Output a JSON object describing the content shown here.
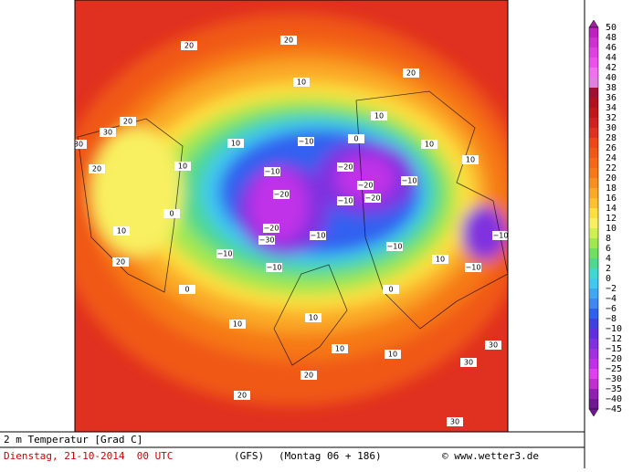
{
  "map": {
    "contour_labels": [
      "20",
      "20",
      "20",
      "10",
      "10",
      "20",
      "30",
      "30",
      "20",
      "10",
      "10",
      "−10",
      "0",
      "10",
      "−20",
      "−10",
      "−20",
      "−20",
      "−10",
      "−10",
      "−20",
      "−20",
      "−30",
      "−10",
      "−10",
      "−10",
      "−10",
      "−10",
      "−10",
      "10",
      "0",
      "10",
      "20",
      "10",
      "10",
      "10",
      "10",
      "30",
      "30",
      "20",
      "20",
      "30",
      "0",
      "0",
      "10"
    ]
  },
  "legend": {
    "labels": [
      "50",
      "48",
      "46",
      "44",
      "42",
      "40",
      "38",
      "36",
      "34",
      "32",
      "30",
      "28",
      "26",
      "24",
      "22",
      "20",
      "18",
      "16",
      "14",
      "12",
      "10",
      "8",
      "6",
      "4",
      "2",
      "0",
      "−2",
      "−4",
      "−6",
      "−8",
      "−10",
      "−12",
      "−15",
      "−20",
      "−25",
      "−30",
      "−35",
      "−40",
      "−45"
    ],
    "colors": [
      "#a020a0",
      "#c020c0",
      "#d030d0",
      "#e040e0",
      "#ee50ee",
      "#f070f0",
      "#e080e0",
      "#a01030",
      "#b01020",
      "#c01818",
      "#d02020",
      "#e03020",
      "#ee4818",
      "#f05818",
      "#f46818",
      "#f67818",
      "#f89020",
      "#faa828",
      "#fcc030",
      "#fde040",
      "#f8f060",
      "#d0f050",
      "#a0e850",
      "#70e060",
      "#50d890",
      "#40d8d0",
      "#40c8f0",
      "#40a8f0",
      "#4088f0",
      "#3060f0",
      "#4040e0",
      "#6030e0",
      "#8030e0",
      "#a030e0",
      "#c030e8",
      "#e040f0",
      "#c030d0",
      "#9020b0",
      "#701890"
    ]
  },
  "footer": {
    "variable": "2 m Temperatur [Grad C]",
    "date": "Dienstag, 21-10-2014  00 UTC",
    "model": "(GFS)",
    "run": "(Montag 06 + 186)",
    "credit": "© www.wetter3.de"
  }
}
